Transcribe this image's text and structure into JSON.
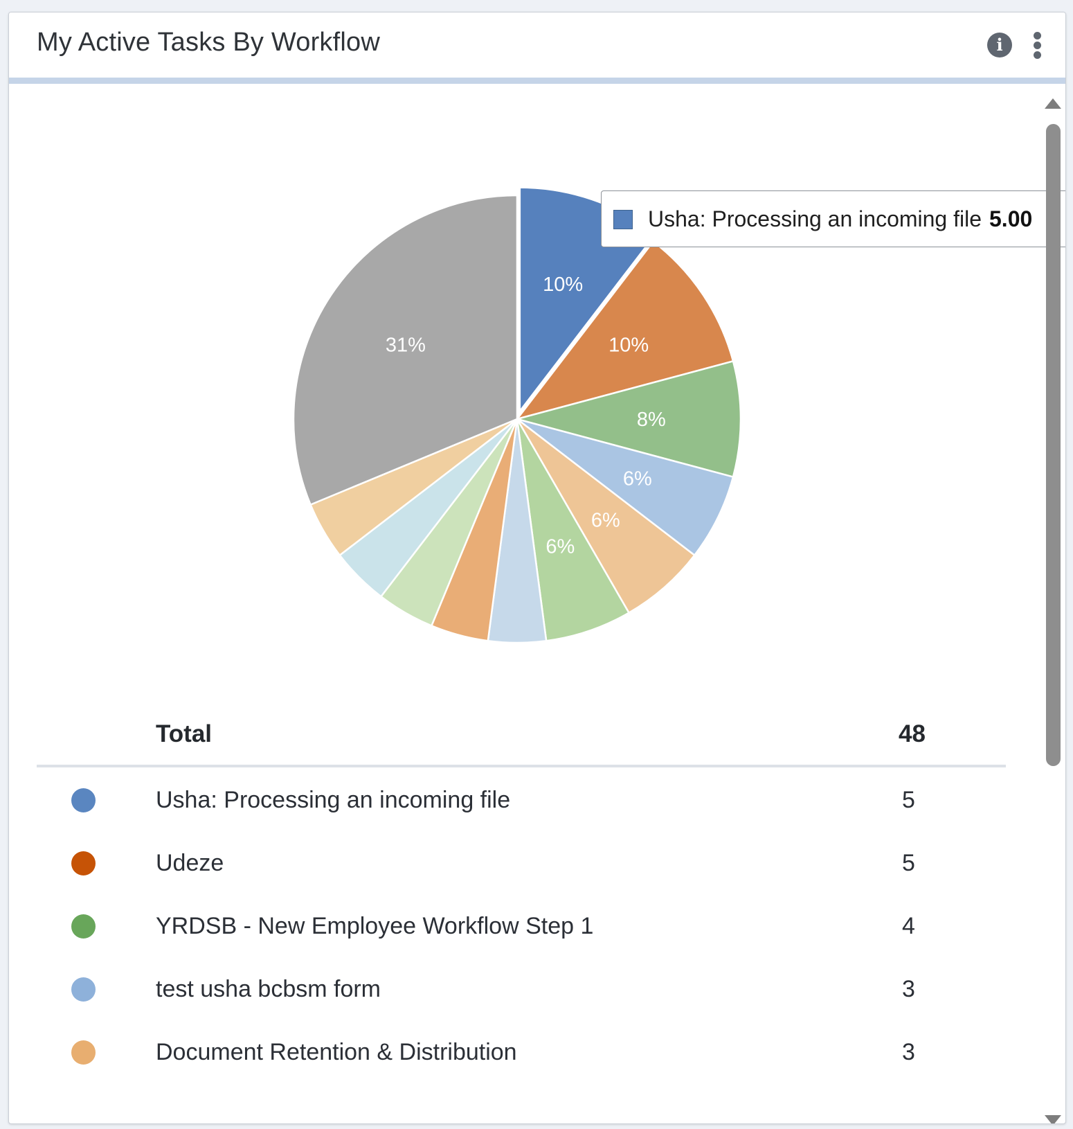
{
  "widget": {
    "title": "My Active Tasks By Workflow",
    "info_icon": "info-icon",
    "menu_icon": "kebab-menu-icon"
  },
  "chart_data": {
    "type": "pie",
    "title": "",
    "total": 48,
    "slices": [
      {
        "name": "Usha: Processing an incoming file",
        "value": 5,
        "label": "10%",
        "color": "#5681bd",
        "exploded": true
      },
      {
        "name": "Udeze",
        "value": 5,
        "label": "10%",
        "color": "#d8874d"
      },
      {
        "name": "YRDSB - New Employee Workflow Step 1",
        "value": 4,
        "label": "8%",
        "color": "#93bf8a"
      },
      {
        "name": "test usha bcbsm form",
        "value": 3,
        "label": "6%",
        "color": "#aac5e3"
      },
      {
        "name": "Document Retention & Distribution",
        "value": 3,
        "label": "6%",
        "color": "#eec596"
      },
      {
        "name": "",
        "value": 3,
        "label": "6%",
        "color": "#b3d5a0"
      },
      {
        "name": "",
        "value": 2,
        "label": "",
        "color": "#c6d9ea"
      },
      {
        "name": "",
        "value": 2,
        "label": "",
        "color": "#e9ad76"
      },
      {
        "name": "",
        "value": 2,
        "label": "",
        "color": "#cce3bb"
      },
      {
        "name": "",
        "value": 2,
        "label": "",
        "color": "#cae3ea"
      },
      {
        "name": "",
        "value": 2,
        "label": "",
        "color": "#f0cfa0"
      },
      {
        "name": "",
        "value": 15,
        "label": "31%",
        "color": "#a8a8a8"
      }
    ]
  },
  "tooltip": {
    "label": "Usha: Processing an incoming file",
    "value": "5.00",
    "color": "#5681bd"
  },
  "table": {
    "total_label": "Total",
    "total_value": "48",
    "rows": [
      {
        "name": "Usha: Processing an incoming file",
        "count": "5",
        "color": "#5a86c0"
      },
      {
        "name": "Udeze",
        "count": "5",
        "color": "#c65306"
      },
      {
        "name": "YRDSB - New Employee Workflow Step 1",
        "count": "4",
        "color": "#68a65a"
      },
      {
        "name": "test usha bcbsm form",
        "count": "3",
        "color": "#8eb1da"
      },
      {
        "name": "Document Retention & Distribution",
        "count": "3",
        "color": "#e8ae70"
      }
    ]
  }
}
